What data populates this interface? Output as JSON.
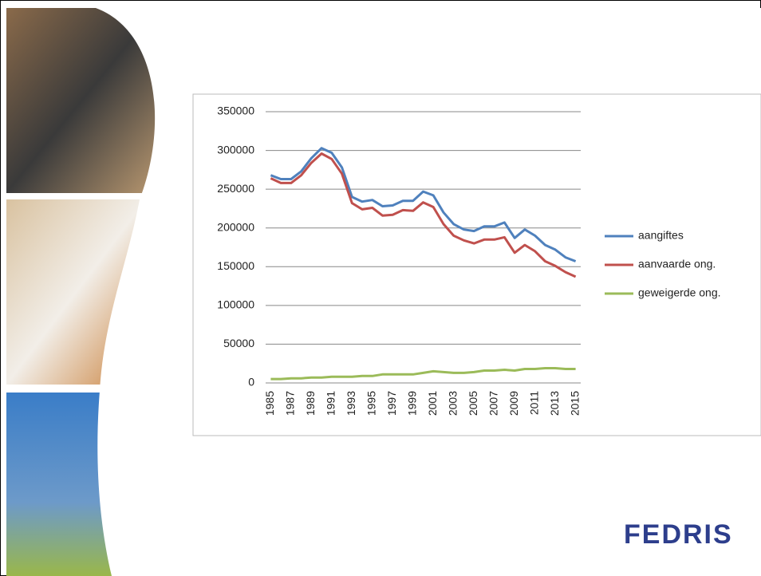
{
  "chart_data": {
    "type": "line",
    "categories": [
      "1985",
      null,
      "1987",
      null,
      "1989",
      null,
      "1991",
      null,
      "1993",
      null,
      "1995",
      null,
      "1997",
      null,
      "1999",
      null,
      "2001",
      null,
      "2003",
      null,
      "2005",
      null,
      "2007",
      null,
      "2009",
      null,
      "2011",
      null,
      "2013",
      null,
      "2015"
    ],
    "series": [
      {
        "name": "aangiftes",
        "color": "#4f81bd",
        "values": [
          268000,
          263000,
          263000,
          273000,
          290000,
          303000,
          297000,
          278000,
          240000,
          234000,
          236000,
          228000,
          229000,
          235000,
          235000,
          247000,
          242000,
          220000,
          205000,
          198000,
          196000,
          202000,
          202000,
          207000,
          187000,
          198000,
          190000,
          178000,
          172000,
          162000,
          157000
        ]
      },
      {
        "name": "aanvaarde ong.",
        "color": "#c0504d",
        "values": [
          264000,
          258000,
          258000,
          268000,
          284000,
          296000,
          289000,
          270000,
          232000,
          224000,
          226000,
          216000,
          217000,
          223000,
          222000,
          233000,
          227000,
          205000,
          190000,
          184000,
          180000,
          185000,
          185000,
          188000,
          168000,
          178000,
          170000,
          157000,
          151000,
          143000,
          137000
        ]
      },
      {
        "name": "geweigerde ong.",
        "color": "#9bbb59",
        "values": [
          5000,
          5000,
          6000,
          6000,
          7000,
          7000,
          8000,
          8000,
          8000,
          9000,
          9000,
          11000,
          11000,
          11000,
          11000,
          13000,
          15000,
          14000,
          13000,
          13000,
          14000,
          16000,
          16000,
          17000,
          16000,
          18000,
          18000,
          19000,
          19000,
          18000,
          18000
        ]
      }
    ],
    "ylim": [
      0,
      350000
    ],
    "yticks": [
      0,
      50000,
      100000,
      150000,
      200000,
      250000,
      300000,
      350000
    ],
    "grid": true,
    "legend": "right"
  },
  "logo": "FEDRIS"
}
